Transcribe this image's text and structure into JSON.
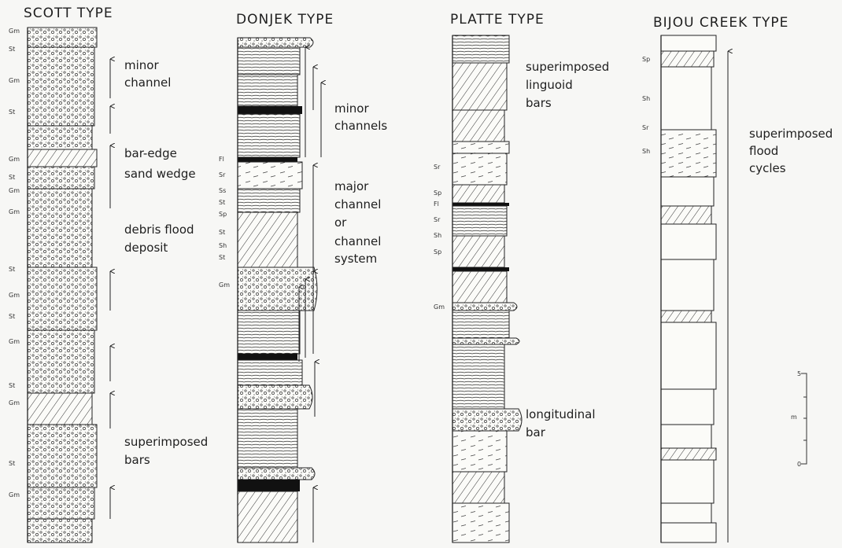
{
  "columns": [
    {
      "title": "SCOTT TYPE",
      "annotations": [
        {
          "lines": [
            "minor",
            "channel"
          ]
        },
        {
          "lines": [
            "bar-edge",
            "sand wedge"
          ]
        },
        {
          "lines": [
            "debris flood",
            "deposit"
          ]
        },
        {
          "lines": [
            "superimposed",
            "bars"
          ]
        }
      ],
      "facies": [
        "Gm",
        "St",
        "Gm",
        "St",
        "Gm",
        "St",
        "Gm",
        "Gm",
        "St",
        "Gm",
        "St",
        "Gm",
        "St",
        "Gm",
        "St",
        "Gm"
      ]
    },
    {
      "title": "DONJEK TYPE",
      "annotations": [
        {
          "lines": [
            "minor",
            "channels"
          ]
        },
        {
          "lines": [
            "major",
            "channel",
            "or",
            "channel",
            "system"
          ]
        }
      ],
      "facies": [
        "Fl",
        "Sr",
        "Ss",
        "St",
        "Sp",
        "St",
        "Sh",
        "St",
        "Gm"
      ]
    },
    {
      "title": "PLATTE TYPE",
      "annotations": [
        {
          "lines": [
            "superimposed",
            "linguoid",
            "bars"
          ]
        },
        {
          "lines": [
            "longitudinal",
            "bar"
          ]
        }
      ],
      "facies": [
        "Sr",
        "Sp",
        "Fl",
        "Sr",
        "Sh",
        "Sp",
        "Gm"
      ]
    },
    {
      "title": "BIJOU CREEK TYPE",
      "annotations": [
        {
          "lines": [
            "superimposed",
            "flood",
            "cycles"
          ]
        }
      ],
      "facies": [
        "Sp",
        "Sh",
        "Sr",
        "Sh"
      ]
    }
  ],
  "scale": {
    "top": "5",
    "unit": "m",
    "bottom": "0"
  }
}
